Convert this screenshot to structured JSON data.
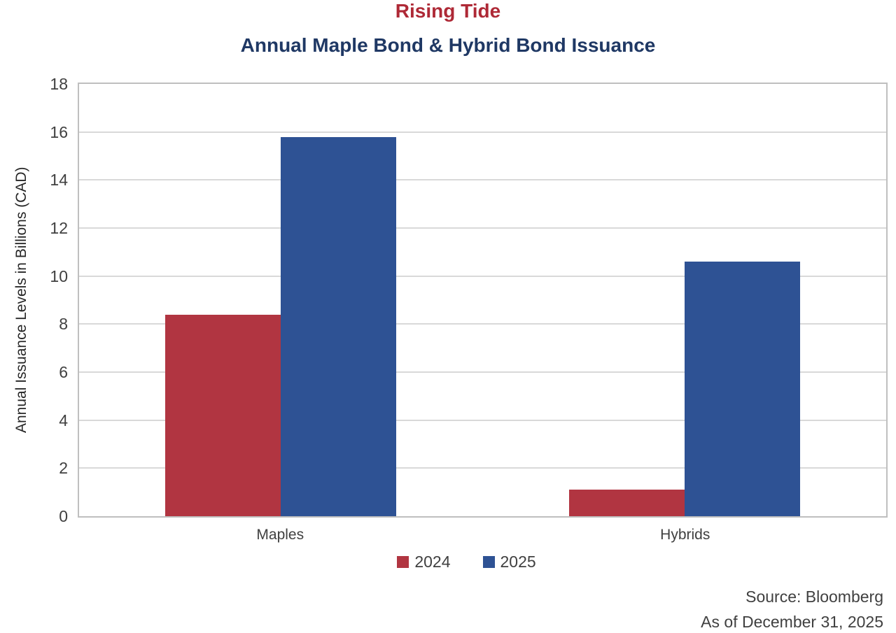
{
  "chart_data": {
    "type": "bar",
    "title": "Rising Tide",
    "subtitle": "Annual Maple Bond & Hybrid Bond Issuance",
    "ylabel": "Annual Issuance Levels in Billions (CAD)",
    "xlabel": "",
    "categories": [
      "Maples",
      "Hybrids"
    ],
    "series": [
      {
        "name": "2024",
        "color": "#B13541",
        "values": [
          8.4,
          1.1
        ]
      },
      {
        "name": "2025",
        "color": "#2E5294",
        "values": [
          15.8,
          10.6
        ]
      }
    ],
    "ylim": [
      0,
      18
    ],
    "yticks": [
      0,
      2,
      4,
      6,
      8,
      10,
      12,
      14,
      16,
      18
    ],
    "grid": true,
    "legend_position": "bottom"
  },
  "colors": {
    "title_red": "#AE2936",
    "subtitle_navy": "#1F3864",
    "axis_text": "#404040",
    "gridline": "#D9D9D9",
    "plot_border": "#BFBFBF"
  },
  "footer": {
    "source": "Source: Bloomberg",
    "as_of": "As of December 31, 2025"
  }
}
